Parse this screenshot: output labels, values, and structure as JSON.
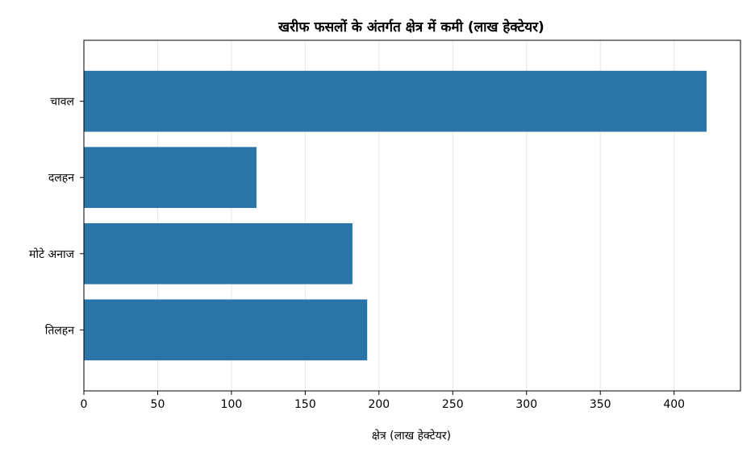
{
  "chart_data": {
    "type": "bar",
    "orientation": "horizontal",
    "title": "खरीफ फसलों के अंतर्गत क्षेत्र में कमी (लाख हेक्टेयर)",
    "xlabel": "क्षेत्र (लाख हेक्टेयर)",
    "ylabel": "",
    "categories": [
      "चावल",
      "दलहन",
      "मोटे अनाज",
      "तिलहन"
    ],
    "values": [
      422,
      117,
      182,
      192
    ],
    "xlim": [
      0,
      445
    ],
    "xticks": [
      0,
      50,
      100,
      150,
      200,
      250,
      300,
      350,
      400
    ],
    "grid": "vertical",
    "legend": "none",
    "bar_color": "#2a74a8",
    "grid_color": "#e6e6e6"
  }
}
